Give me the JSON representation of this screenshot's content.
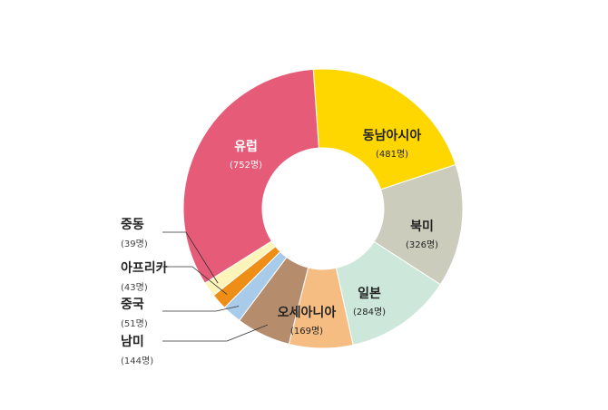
{
  "chart_data": {
    "type": "pie",
    "donut": true,
    "unit": "명",
    "slices": [
      {
        "name": "동남아시아",
        "count_label": "(481명)",
        "value": 481,
        "color": "#FFD700",
        "label_color": "#222222"
      },
      {
        "name": "북미",
        "count_label": "(326명)",
        "value": 326,
        "color": "#CCCCBD",
        "label_color": "#222222"
      },
      {
        "name": "일본",
        "count_label": "(284명)",
        "value": 284,
        "color": "#CDE8DA",
        "label_color": "#222222"
      },
      {
        "name": "오세아니아",
        "count_label": "(169명)",
        "value": 169,
        "color": "#F5BD82",
        "label_color": "#222222"
      },
      {
        "name": "남미",
        "count_label": "(144명)",
        "value": 144,
        "color": "#B58D6D",
        "label_color": "#222222"
      },
      {
        "name": "중국",
        "count_label": "(51명)",
        "value": 51,
        "color": "#A8CBEA",
        "label_color": "#222222"
      },
      {
        "name": "아프리카",
        "count_label": "(43명)",
        "value": 43,
        "color": "#EE8E17",
        "label_color": "#222222"
      },
      {
        "name": "중동",
        "count_label": "(39명)",
        "value": 39,
        "color": "#FCF4B8",
        "label_color": "#222222"
      },
      {
        "name": "유럽",
        "count_label": "(752명)",
        "value": 752,
        "color": "#E65C78",
        "label_color": "#ffffff"
      }
    ]
  }
}
